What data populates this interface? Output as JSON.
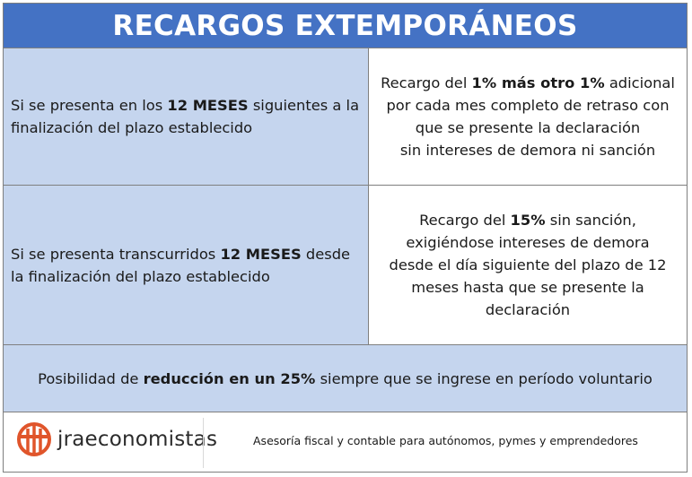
{
  "title": "RECARGOS EXTEMPORÁNEOS",
  "row1": {
    "left_pre": "Si se presenta en los ",
    "left_bold": "12 MESES",
    "left_post": " siguientes a la finalización del plazo establecido",
    "right_line1_pre": "Recargo del ",
    "right_line1_bold": "1% más otro 1%",
    "right_line1_post": " adicional",
    "right_rest_1": "por cada mes completo de retraso con",
    "right_rest_2": "que se presente la declaración",
    "right_rest_3": "sin intereses de demora ni sanción"
  },
  "row2": {
    "left_pre": "Si se presenta transcurridos ",
    "left_bold": "12 MESES",
    "left_post": " desde la finalización del plazo establecido",
    "right_pre": "Recargo del ",
    "right_bold": "15%",
    "right_post": " sin sanción,",
    "right_rest_1": "exigiéndose intereses de demora",
    "right_rest_2": "desde el día siguiente del plazo de 12",
    "right_rest_3": "meses hasta que se presente la",
    "right_rest_4": "declaración"
  },
  "row3": {
    "pre": "Posibilidad de ",
    "bold": "reducción en un 25%",
    "post": " siempre que se ingrese en período voluntario"
  },
  "footer": {
    "brand": "jraeconomistas",
    "tagline": "Asesoría fiscal y contable para autónomos, pymes y emprendedores",
    "logo_color": "#e0552b"
  }
}
